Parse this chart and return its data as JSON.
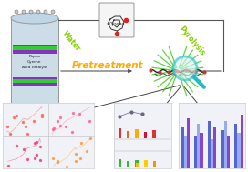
{
  "background_color": "#ffffff",
  "water_text": "Water",
  "pyrolysis_text": "Pyrolysis",
  "pretreatment_text": "Pretreatment",
  "cyrene_text": "Cyrene",
  "reactor_labels": "Poplar\nCyrene\nAcid catalyst",
  "arrow_color": "#555555",
  "water_color": "#88cc00",
  "pyrolysis_color": "#88cc00",
  "pretreatment_color": "#ffaa00",
  "bar_colors_red": [
    "#dd3333",
    "#ee6622",
    "#ffaa00",
    "#cc1144"
  ],
  "bar_colors_green": [
    "#33bb33",
    "#33bb33",
    "#33bb33"
  ],
  "bar_colors_orange": [
    "#ffbb00",
    "#ffcc00",
    "#ee9900"
  ],
  "bar_colors_blue": [
    "#5566cc",
    "#7788dd",
    "#99aaee",
    "#aabbff",
    "#bbccff"
  ],
  "bar_colors_purple": [
    "#8844cc",
    "#9955dd",
    "#aa66ee",
    "#bb77ff",
    "#cc88ff"
  ]
}
